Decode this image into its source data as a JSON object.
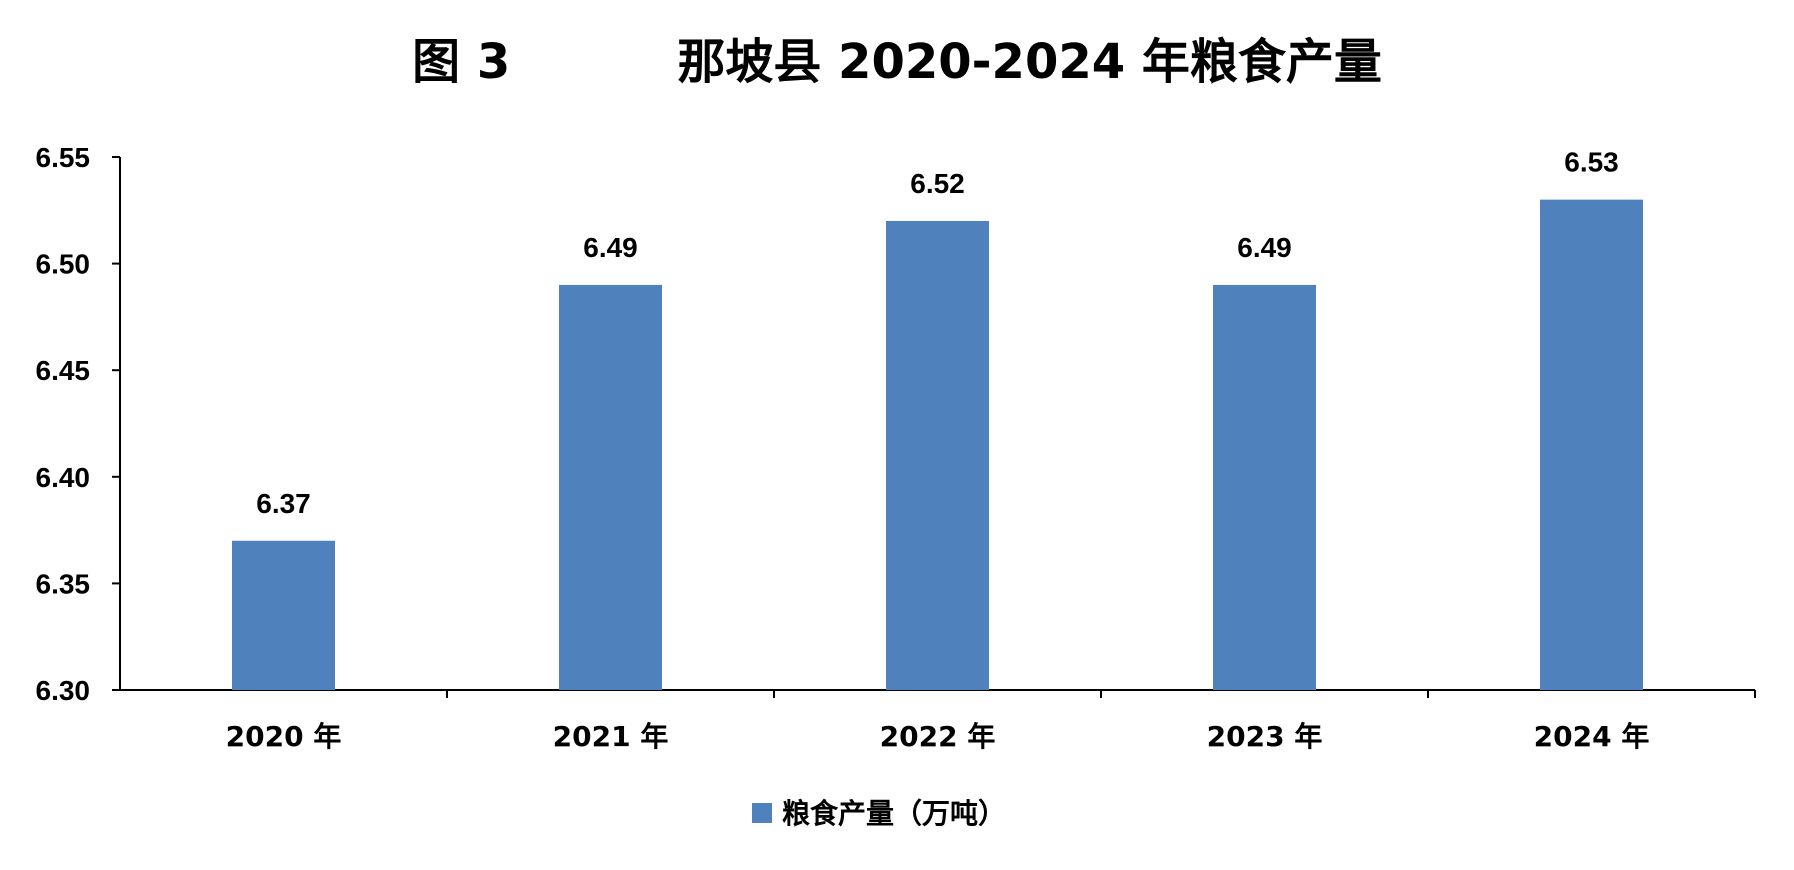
{
  "chart_data": {
    "type": "bar",
    "title": "图 3          那坡县 2020-2024 年粮食产量",
    "categories": [
      "2020 年",
      "2021 年",
      "2022 年",
      "2023 年",
      "2024 年"
    ],
    "series": [
      {
        "name": "粮食产量（万吨）",
        "values": [
          6.37,
          6.49,
          6.52,
          6.49,
          6.53
        ],
        "color": "#4F81BD"
      }
    ],
    "ylim": [
      6.3,
      6.55
    ],
    "yticks": [
      "6.30",
      "6.35",
      "6.40",
      "6.45",
      "6.50",
      "6.55"
    ],
    "data_labels": [
      "6.37",
      "6.49",
      "6.52",
      "6.49",
      "6.53"
    ],
    "grid": false,
    "legend_position": "bottom"
  }
}
